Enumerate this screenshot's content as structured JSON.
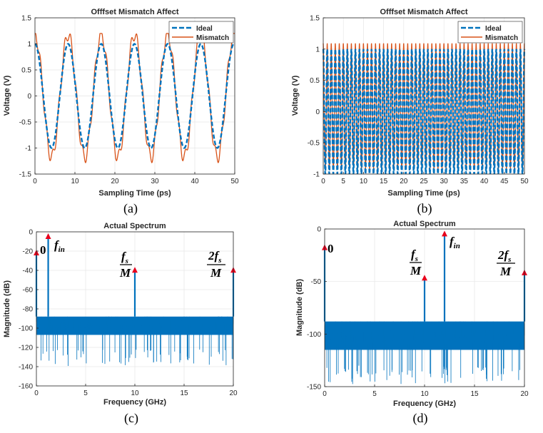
{
  "colors": {
    "ideal": "#0072BD",
    "mismatch": "#D95319",
    "spectrum": "#0072BD",
    "arrow": "#E8001C",
    "grid": "#e6e6e6",
    "axis": "#262626"
  },
  "chart_data": [
    {
      "id": "a",
      "type": "line",
      "caption": "(a)",
      "title": "Offfset Mismatch Affect",
      "xlabel": "Sampling Time (ps)",
      "ylabel": "Voltage (V)",
      "xlim": [
        0,
        50
      ],
      "ylim": [
        -1.5,
        1.5
      ],
      "xticks": [
        "0",
        "10",
        "20",
        "30",
        "40",
        "50"
      ],
      "yticks": [
        "-1.5",
        "-1",
        "-0.5",
        "0",
        "0.5",
        "1",
        "1.5"
      ],
      "legend_position": "top-right",
      "series": [
        {
          "name": "Ideal",
          "style": "dashed",
          "period_ps": 8.3,
          "amplitude": 1.0
        },
        {
          "name": "Mismatch",
          "style": "solid",
          "period_ps": 8.3,
          "amplitude": 1.0,
          "offset_mismatch_peak": 0.2
        }
      ]
    },
    {
      "id": "b",
      "type": "line",
      "caption": "(b)",
      "title": "Offfset Mismatch Affect",
      "xlabel": "Sampling Time (ps)",
      "ylabel": "Voltage (V)",
      "xlim": [
        0,
        50
      ],
      "ylim": [
        -1,
        1.5
      ],
      "xticks": [
        "0",
        "5",
        "10",
        "15",
        "20",
        "25",
        "30",
        "35",
        "40",
        "45",
        "50"
      ],
      "yticks": [
        "-1",
        "-0.5",
        "0",
        "0.5",
        "1",
        "1.5"
      ],
      "legend_position": "top-right",
      "series": [
        {
          "name": "Ideal",
          "style": "dashed",
          "period_ps": 1.0,
          "amplitude": 1.0
        },
        {
          "name": "Mismatch",
          "style": "solid",
          "period_ps": 1.0,
          "amplitude": 1.0,
          "offset_mismatch_peak": 0.1
        }
      ]
    },
    {
      "id": "c",
      "type": "bar",
      "caption": "(c)",
      "title": "Actual Spectrum",
      "xlabel": "Frequency (GHz)",
      "ylabel": "Magnitude (dB)",
      "xlim": [
        0,
        20
      ],
      "ylim": [
        -160,
        0
      ],
      "xticks": [
        "0",
        "5",
        "10",
        "15",
        "20"
      ],
      "yticks": [
        "-160",
        "-140",
        "-120",
        "-100",
        "-80",
        "-60",
        "-40",
        "-20",
        "0"
      ],
      "noise_floor_db": [
        -112,
        -88
      ],
      "tones": [
        {
          "label": "0",
          "freq": 0,
          "db": -20
        },
        {
          "label": "f_in",
          "freq": 1.2,
          "db": -3
        },
        {
          "label": "fs/M",
          "freq": 10,
          "db": -38
        },
        {
          "label": "2fs/M",
          "freq": 20,
          "db": -38
        }
      ]
    },
    {
      "id": "d",
      "type": "bar",
      "caption": "(d)",
      "title": "Actual Spectrum",
      "xlabel": "Frequency (GHz)",
      "ylabel": "Magnitude (dB)",
      "xlim": [
        0,
        20
      ],
      "ylim": [
        -150,
        0
      ],
      "xticks": [
        "0",
        "5",
        "10",
        "15",
        "20"
      ],
      "yticks": [
        "-150",
        "-100",
        "-50",
        "0"
      ],
      "noise_floor_db": [
        -120,
        -88
      ],
      "tones": [
        {
          "label": "0",
          "freq": 0,
          "db": -16
        },
        {
          "label": "fs/M",
          "freq": 10,
          "db": -45
        },
        {
          "label": "f_in",
          "freq": 12,
          "db": -3
        },
        {
          "label": "2fs/M",
          "freq": 20,
          "db": -40
        }
      ]
    }
  ]
}
